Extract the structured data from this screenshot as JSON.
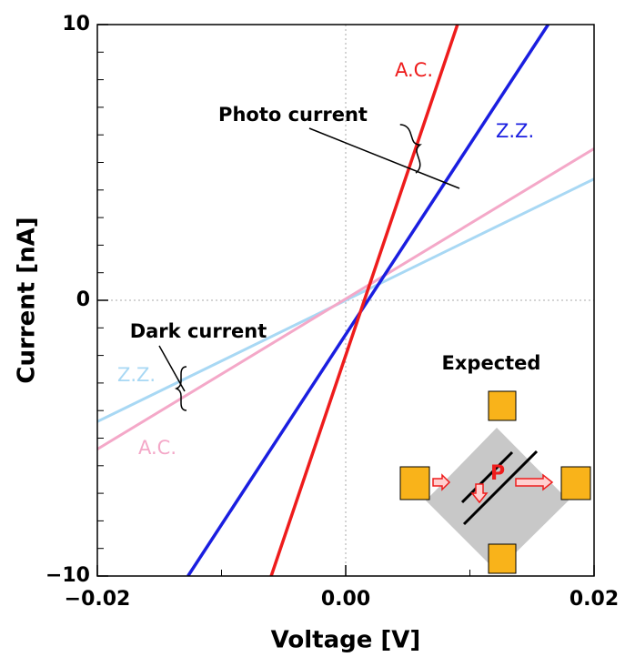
{
  "chart_data": {
    "type": "line",
    "xlabel": "Voltage [V]",
    "ylabel": "Current [nA]",
    "xlim": [
      -0.02,
      0.02
    ],
    "ylim": [
      -10,
      10
    ],
    "xticks": [
      {
        "value": -0.02,
        "label": "−0.02"
      },
      {
        "value": 0,
        "label": "0.00"
      },
      {
        "value": 0.02,
        "label": "0.02"
      }
    ],
    "yticks": [
      {
        "value": -10,
        "label": "−10"
      },
      0,
      10
    ],
    "xminorticks": [
      -0.01,
      0.01
    ],
    "yminorticks": [
      -9,
      -8,
      -7,
      -6,
      -5,
      -4,
      -3,
      -2,
      -1,
      1,
      2,
      3,
      4,
      5,
      6,
      7,
      8,
      9
    ],
    "zero_lines": true,
    "series": [
      {
        "name": "A.C.",
        "color": "#ee1c1c",
        "x": [
          -0.006,
          0.009
        ],
        "values": [
          -10,
          10
        ]
      },
      {
        "name": "Z.Z.",
        "color": "#1a1ee0",
        "x": [
          -0.0127,
          0.0163
        ],
        "values": [
          -10,
          10
        ]
      },
      {
        "name": "A.C.",
        "color": "#f4a8c8",
        "x": [
          -0.02,
          0.02
        ],
        "values": [
          -5.4,
          5.5
        ]
      },
      {
        "name": "Z.Z.",
        "color": "#a8d8f4",
        "x": [
          -0.02,
          0.02
        ],
        "values": [
          -4.4,
          4.4
        ]
      }
    ],
    "annotations": [
      "Photo current",
      "Dark current",
      "Expected",
      "P"
    ]
  }
}
